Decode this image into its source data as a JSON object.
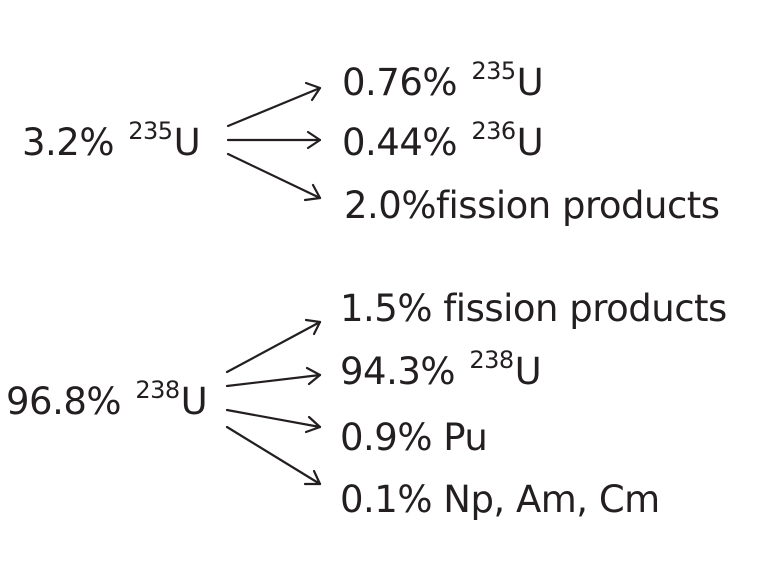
{
  "groups": [
    {
      "source": {
        "percent": "3.2%",
        "mass": "235",
        "element": "U"
      },
      "products": [
        {
          "percent": "0.76%",
          "mass": "235",
          "element": "U"
        },
        {
          "percent": "0.44%",
          "mass": "236",
          "element": "U"
        },
        {
          "text": "2.0%fission products"
        }
      ]
    },
    {
      "source": {
        "percent": "96.8%",
        "mass": "238",
        "element": "U"
      },
      "products": [
        {
          "text": "1.5% fission products"
        },
        {
          "percent": "94.3%",
          "mass": "238",
          "element": "U"
        },
        {
          "text": "0.9% Pu"
        },
        {
          "text": "0.1% Np, Am, Cm"
        }
      ]
    }
  ]
}
